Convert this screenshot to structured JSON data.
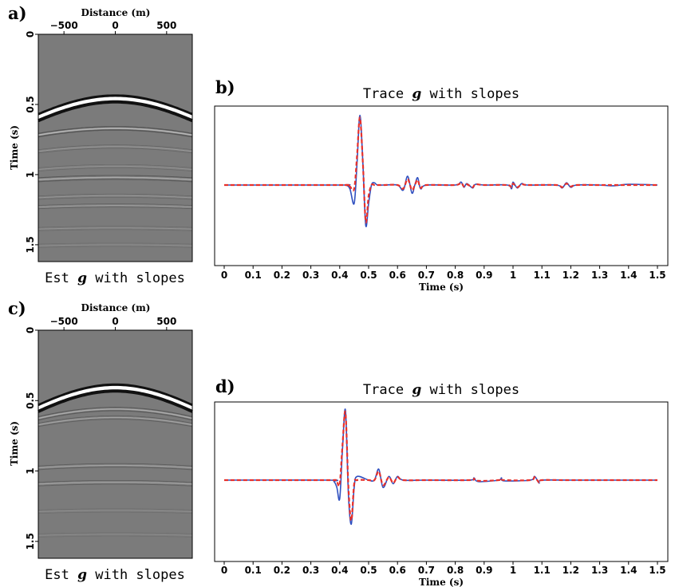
{
  "panels": {
    "a": "a)",
    "b": "b)",
    "c": "c)",
    "d": "d)"
  },
  "colors": {
    "solid": "#3050c0",
    "dashed": "#e8302a",
    "image_bg": "#7b7b7b"
  },
  "chart_data": [
    {
      "id": "a",
      "type": "heatmap",
      "title": "",
      "xlabel": "Distance (m)",
      "ylabel": "Time (s)",
      "xticks": [
        -500,
        0,
        500
      ],
      "xtick_labels": [
        "−500",
        "0",
        "500"
      ],
      "yticks": [
        0,
        0.5,
        1,
        1.5
      ],
      "ytick_labels": [
        "0",
        "0.5",
        "1",
        "1.5"
      ],
      "xlim": [
        -750,
        750
      ],
      "ylim": [
        0,
        1.62
      ],
      "caption_pre": "Est ",
      "caption_var": "g",
      "caption_post": " with slopes",
      "events": [
        {
          "t0": 0.46,
          "amp": 1.0,
          "curv": 2.5e-07,
          "w": 0.022
        },
        {
          "t0": 0.67,
          "amp": 0.35,
          "curv": 1.2e-07,
          "w": 0.012
        },
        {
          "t0": 0.8,
          "amp": 0.2,
          "curv": 1e-07,
          "w": 0.012
        },
        {
          "t0": 0.94,
          "amp": 0.15,
          "curv": 8e-08,
          "w": 0.012
        },
        {
          "t0": 1.02,
          "amp": 0.3,
          "curv": 6e-08,
          "w": 0.014
        },
        {
          "t0": 1.15,
          "amp": 0.18,
          "curv": 6e-08,
          "w": 0.012
        },
        {
          "t0": 1.22,
          "amp": 0.22,
          "curv": 5e-08,
          "w": 0.012
        },
        {
          "t0": 1.38,
          "amp": 0.15,
          "curv": 4e-08,
          "w": 0.012
        },
        {
          "t0": 1.5,
          "amp": 0.12,
          "curv": 4e-08,
          "w": 0.012
        }
      ]
    },
    {
      "id": "b",
      "type": "line",
      "title_pre": "Trace ",
      "title_var": "g",
      "title_post": " with slopes",
      "xlabel": "Time (s)",
      "ylabel": "",
      "xlim": [
        -0.03,
        1.54
      ],
      "ylim": [
        -1.0,
        1.0
      ],
      "xticks": [
        0,
        0.1,
        0.2,
        0.3,
        0.4,
        0.5,
        0.6,
        0.7,
        0.8,
        0.9,
        1,
        1.1,
        1.2,
        1.3,
        1.4,
        1.5
      ],
      "xtick_labels": [
        "0",
        "0.1",
        "0.2",
        "0.3",
        "0.4",
        "0.5",
        "0.6",
        "0.7",
        "0.8",
        "0.9",
        "1",
        "1.1",
        "1.2",
        "1.3",
        "1.4",
        "1.5"
      ],
      "series": [
        {
          "style": "solid",
          "x": [
            0,
            0.4,
            0.42,
            0.435,
            0.45,
            0.46,
            0.47,
            0.48,
            0.49,
            0.5,
            0.51,
            0.52,
            0.53,
            0.55,
            0.6,
            0.62,
            0.635,
            0.65,
            0.66,
            0.67,
            0.68,
            0.7,
            0.8,
            0.82,
            0.83,
            0.84,
            0.86,
            0.87,
            0.9,
            0.98,
            0.995,
            1.0,
            1.015,
            1.03,
            1.05,
            1.15,
            1.17,
            1.185,
            1.2,
            1.22,
            1.3,
            1.35,
            1.4,
            1.5
          ],
          "y": [
            0.0,
            0.0,
            0.0,
            -0.05,
            -0.25,
            0.3,
            0.95,
            0.3,
            -0.55,
            -0.25,
            0.0,
            0.03,
            0.0,
            0.0,
            0.0,
            -0.07,
            0.12,
            -0.11,
            0.0,
            0.1,
            -0.05,
            0.0,
            0.0,
            0.04,
            -0.03,
            0.02,
            -0.04,
            0.01,
            0.0,
            0.0,
            -0.05,
            0.04,
            -0.04,
            0.02,
            0.0,
            0.0,
            -0.04,
            0.03,
            -0.03,
            0.0,
            0.0,
            -0.01,
            0.01,
            0.0
          ]
        },
        {
          "style": "dashed",
          "x": [
            0,
            0.4,
            0.42,
            0.435,
            0.45,
            0.46,
            0.47,
            0.48,
            0.49,
            0.5,
            0.51,
            0.52,
            0.53,
            0.55,
            0.6,
            0.62,
            0.635,
            0.65,
            0.66,
            0.67,
            0.68,
            0.7,
            0.8,
            0.82,
            0.83,
            0.84,
            0.86,
            0.87,
            0.9,
            0.98,
            0.995,
            1.0,
            1.015,
            1.03,
            1.05,
            1.15,
            1.17,
            1.185,
            1.2,
            1.22,
            1.3,
            1.35,
            1.4,
            1.5
          ],
          "y": [
            0.0,
            0.0,
            0.0,
            -0.02,
            -0.05,
            0.4,
            0.92,
            0.3,
            -0.5,
            -0.15,
            0.0,
            0.0,
            0.0,
            0.0,
            0.0,
            -0.05,
            0.08,
            -0.07,
            0.0,
            0.07,
            -0.04,
            0.0,
            0.0,
            0.03,
            -0.02,
            0.01,
            -0.03,
            0.01,
            0.0,
            0.0,
            -0.03,
            0.02,
            -0.03,
            0.01,
            0.0,
            0.0,
            -0.03,
            0.02,
            -0.02,
            0.0,
            0.0,
            0.0,
            0.0,
            0.0
          ]
        }
      ]
    },
    {
      "id": "c",
      "type": "heatmap",
      "title": "",
      "xlabel": "Distance (m)",
      "ylabel": "Time (s)",
      "xticks": [
        -500,
        0,
        500
      ],
      "xtick_labels": [
        "−500",
        "0",
        "500"
      ],
      "yticks": [
        0,
        0.5,
        1,
        1.5
      ],
      "ytick_labels": [
        "0",
        "0.5",
        "1",
        "1.5"
      ],
      "xlim": [
        -750,
        750
      ],
      "ylim": [
        0,
        1.62
      ],
      "caption_pre": "Est ",
      "caption_var": "g",
      "caption_post": " with slopes",
      "events": [
        {
          "t0": 0.41,
          "amp": 1.0,
          "curv": 2.5e-07,
          "w": 0.022
        },
        {
          "t0": 0.56,
          "amp": 0.3,
          "curv": 1.4e-07,
          "w": 0.012
        },
        {
          "t0": 0.62,
          "amp": 0.25,
          "curv": 1.2e-07,
          "w": 0.012
        },
        {
          "t0": 0.96,
          "amp": 0.25,
          "curv": 6e-08,
          "w": 0.013
        },
        {
          "t0": 1.08,
          "amp": 0.25,
          "curv": 5e-08,
          "w": 0.013
        },
        {
          "t0": 1.28,
          "amp": 0.12,
          "curv": 4e-08,
          "w": 0.012
        },
        {
          "t0": 1.45,
          "amp": 0.1,
          "curv": 4e-08,
          "w": 0.012
        }
      ]
    },
    {
      "id": "d",
      "type": "line",
      "title_pre": "Trace ",
      "title_var": "g",
      "title_post": " with slopes",
      "xlabel": "Time (s)",
      "ylabel": "",
      "xlim": [
        -0.03,
        1.54
      ],
      "ylim": [
        -1.0,
        1.0
      ],
      "xticks": [
        0,
        0.1,
        0.2,
        0.3,
        0.4,
        0.5,
        0.6,
        0.7,
        0.8,
        0.9,
        1,
        1.1,
        1.2,
        1.3,
        1.4,
        1.5
      ],
      "xtick_labels": [
        "0",
        "0.1",
        "0.2",
        "0.3",
        "0.4",
        "0.5",
        "0.6",
        "0.7",
        "0.8",
        "0.9",
        "1",
        "1.1",
        "1.2",
        "1.3",
        "1.4",
        "1.5"
      ],
      "series": [
        {
          "style": "solid",
          "x": [
            0,
            0.36,
            0.38,
            0.39,
            0.4,
            0.41,
            0.42,
            0.43,
            0.44,
            0.45,
            0.46,
            0.5,
            0.52,
            0.535,
            0.55,
            0.57,
            0.585,
            0.6,
            0.62,
            0.7,
            0.85,
            0.865,
            0.88,
            0.95,
            0.96,
            0.97,
            1.06,
            1.075,
            1.09,
            1.1,
            1.2,
            1.5
          ],
          "y": [
            0.0,
            0.0,
            -0.02,
            -0.1,
            -0.25,
            0.45,
            0.95,
            -0.2,
            -0.6,
            -0.1,
            0.05,
            0.0,
            0.0,
            0.15,
            -0.1,
            0.05,
            -0.05,
            0.05,
            0.0,
            0.0,
            0.0,
            0.03,
            -0.02,
            0.0,
            0.03,
            -0.01,
            0.0,
            0.05,
            -0.04,
            0.0,
            0.0,
            0.0
          ]
        },
        {
          "style": "dashed",
          "x": [
            0,
            0.36,
            0.38,
            0.39,
            0.4,
            0.41,
            0.42,
            0.43,
            0.44,
            0.45,
            0.46,
            0.5,
            0.52,
            0.535,
            0.55,
            0.57,
            0.585,
            0.6,
            0.62,
            0.7,
            0.85,
            0.865,
            0.88,
            0.95,
            0.96,
            0.97,
            1.06,
            1.075,
            1.09,
            1.1,
            1.2,
            1.5
          ],
          "y": [
            0.0,
            0.0,
            0.0,
            -0.02,
            -0.05,
            0.5,
            0.92,
            -0.1,
            -0.55,
            -0.05,
            0.0,
            0.0,
            0.0,
            0.12,
            -0.07,
            0.04,
            -0.04,
            0.04,
            0.0,
            0.0,
            0.0,
            0.02,
            -0.01,
            0.0,
            0.02,
            0.0,
            0.0,
            0.04,
            -0.03,
            0.0,
            0.0,
            0.0
          ]
        }
      ]
    }
  ]
}
